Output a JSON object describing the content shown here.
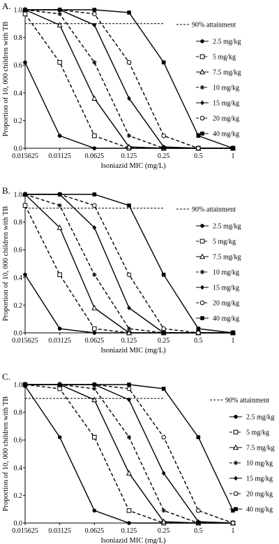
{
  "legend": {
    "attainment": "90% attainment",
    "items": [
      {
        "label": "2.5 mg/kg",
        "marker": "filled-circle",
        "dash": "solid"
      },
      {
        "label": "5 mg/kg",
        "marker": "open-square",
        "dash": "dashed"
      },
      {
        "label": "7.5 mg/kg",
        "marker": "open-triangle",
        "dash": "solid"
      },
      {
        "label": "10 mg/kg",
        "marker": "asterisk",
        "dash": "dashed"
      },
      {
        "label": "15 mg/kg",
        "marker": "filled-diamond",
        "dash": "solid"
      },
      {
        "label": "20 mg/kg",
        "marker": "open-circle",
        "dash": "dashed"
      },
      {
        "label": "40 mg/kg",
        "marker": "filled-square",
        "dash": "solid"
      }
    ]
  },
  "colors": {
    "line": "#000000",
    "background": "#ffffff"
  },
  "chart_data": [
    {
      "type": "line",
      "panel_label": "A.",
      "xlabel": "Isoniazid MIC (mg/L)",
      "ylabel": "Proportion of 10, 000 children with TB",
      "x_scale": "log2",
      "categories": [
        "0.015625",
        "0.03125",
        "0.0625",
        "0.125",
        "0.25",
        "0.5",
        "1"
      ],
      "yticks": [
        "0.0",
        "0.2",
        "0.4",
        "0.6",
        "0.8",
        "1.0"
      ],
      "ylim": [
        0,
        1
      ],
      "reference_line": 0.9,
      "series": [
        {
          "name": "2.5 mg/kg",
          "values": [
            0.62,
            0.09,
            0.0,
            0.0,
            0.0,
            0.0,
            0.0
          ]
        },
        {
          "name": "5 mg/kg",
          "values": [
            0.97,
            0.62,
            0.09,
            0.0,
            0.0,
            0.0,
            0.0
          ]
        },
        {
          "name": "7.5 mg/kg",
          "values": [
            1.0,
            0.89,
            0.36,
            0.01,
            0.0,
            0.0,
            0.0
          ]
        },
        {
          "name": "10 mg/kg",
          "values": [
            1.0,
            0.97,
            0.62,
            0.09,
            0.0,
            0.0,
            0.0
          ]
        },
        {
          "name": "15 mg/kg",
          "values": [
            1.0,
            1.0,
            0.89,
            0.36,
            0.01,
            0.0,
            0.0
          ]
        },
        {
          "name": "20 mg/kg",
          "values": [
            1.0,
            1.0,
            0.97,
            0.62,
            0.09,
            0.0,
            0.0
          ]
        },
        {
          "name": "40 mg/kg",
          "values": [
            1.0,
            1.0,
            1.0,
            0.98,
            0.62,
            0.09,
            0.0
          ]
        }
      ]
    },
    {
      "type": "line",
      "panel_label": "B.",
      "xlabel": "Isoniazid MIC (mg/L)",
      "ylabel": "Proportion of 10, 000 children with TB",
      "x_scale": "log2",
      "categories": [
        "0.015625",
        "0.03125",
        "0.0625",
        "0.125",
        "0.25",
        "0.5",
        "1"
      ],
      "yticks": [
        "0.0",
        "0.2",
        "0.4",
        "0.6",
        "0.8",
        "1.0"
      ],
      "ylim": [
        0,
        1
      ],
      "reference_line": 0.9,
      "series": [
        {
          "name": "2.5 mg/kg",
          "values": [
            0.42,
            0.03,
            0.0,
            0.0,
            0.0,
            0.0,
            0.0
          ]
        },
        {
          "name": "5 mg/kg",
          "values": [
            0.92,
            0.42,
            0.03,
            0.0,
            0.0,
            0.0,
            0.0
          ]
        },
        {
          "name": "7.5 mg/kg",
          "values": [
            1.0,
            0.76,
            0.18,
            0.0,
            0.0,
            0.0,
            0.0
          ]
        },
        {
          "name": "10 mg/kg",
          "values": [
            1.0,
            0.92,
            0.42,
            0.03,
            0.0,
            0.0,
            0.0
          ]
        },
        {
          "name": "15 mg/kg",
          "values": [
            1.0,
            1.0,
            0.76,
            0.18,
            0.0,
            0.0,
            0.0
          ]
        },
        {
          "name": "20 mg/kg",
          "values": [
            1.0,
            1.0,
            0.92,
            0.42,
            0.03,
            0.0,
            0.0
          ]
        },
        {
          "name": "40 mg/kg",
          "values": [
            1.0,
            1.0,
            1.0,
            0.92,
            0.42,
            0.03,
            0.0
          ]
        }
      ]
    },
    {
      "type": "line",
      "panel_label": "C.",
      "xlabel": "Isoniazid MIC (mg/L)",
      "ylabel": "Proportion of 10, 000 children with TB",
      "x_scale": "log2",
      "categories": [
        "0.015625",
        "0.03125",
        "0.0625",
        "0.125",
        "0.25",
        "0.5",
        "1"
      ],
      "yticks": [
        "0.0",
        "0.2",
        "0.4",
        "0.6",
        "0.8",
        "1.0"
      ],
      "ylim": [
        0,
        1
      ],
      "reference_line": 0.9,
      "series": [
        {
          "name": "2.5 mg/kg",
          "values": [
            0.99,
            0.62,
            0.09,
            0.0,
            0.0,
            0.0,
            0.0
          ]
        },
        {
          "name": "5 mg/kg",
          "values": [
            1.0,
            0.97,
            0.62,
            0.09,
            0.0,
            0.0,
            0.0
          ]
        },
        {
          "name": "7.5 mg/kg",
          "values": [
            1.0,
            1.0,
            0.89,
            0.36,
            0.01,
            0.0,
            0.0
          ]
        },
        {
          "name": "10 mg/kg",
          "values": [
            1.0,
            1.0,
            0.97,
            0.62,
            0.09,
            0.0,
            0.0
          ]
        },
        {
          "name": "15 mg/kg",
          "values": [
            1.0,
            1.0,
            1.0,
            0.89,
            0.36,
            0.01,
            0.0
          ]
        },
        {
          "name": "20 mg/kg",
          "values": [
            1.0,
            1.0,
            1.0,
            0.97,
            0.62,
            0.09,
            0.0
          ]
        },
        {
          "name": "40 mg/kg",
          "values": [
            1.0,
            1.0,
            1.0,
            1.0,
            0.97,
            0.62,
            0.09
          ]
        }
      ]
    }
  ]
}
